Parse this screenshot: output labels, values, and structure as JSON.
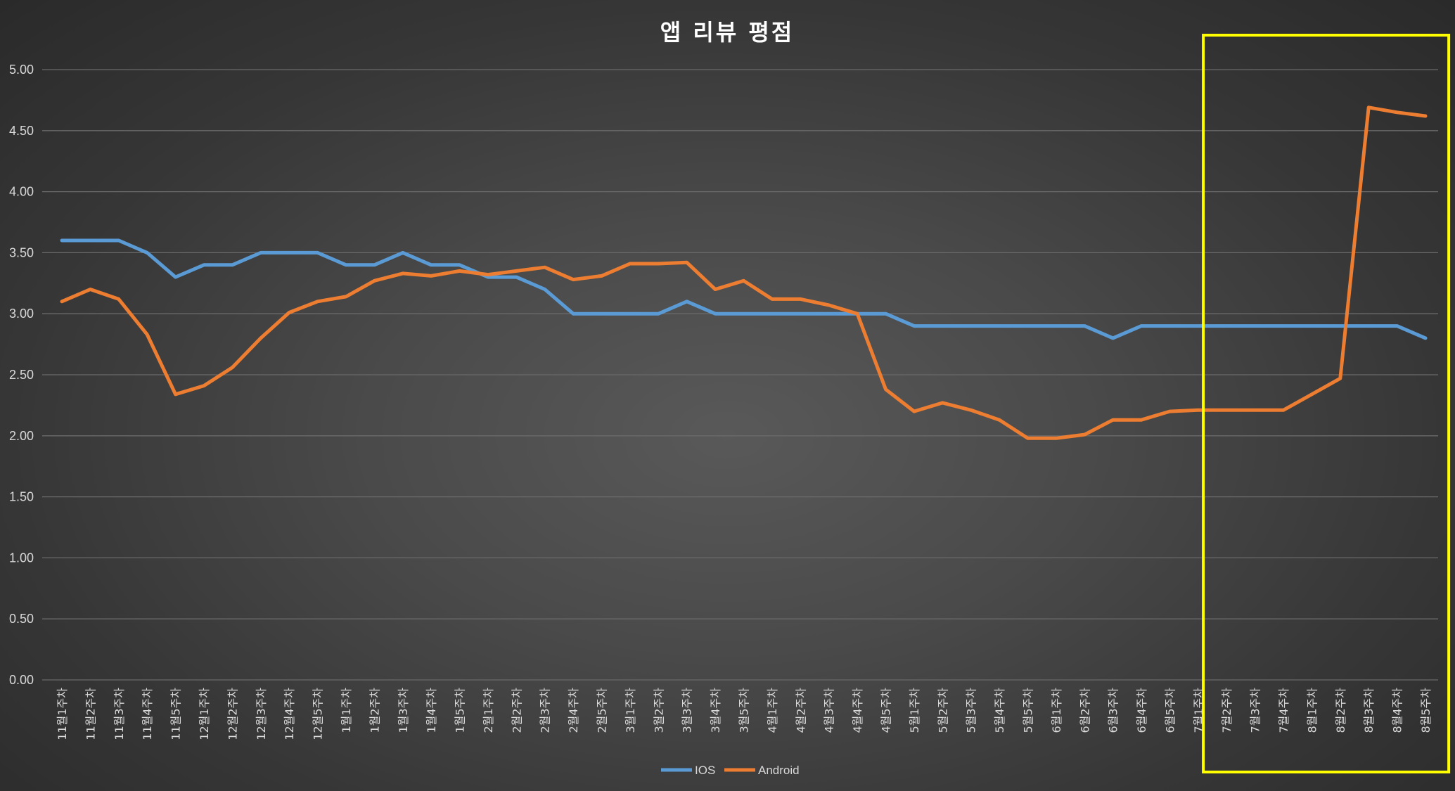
{
  "chart_data": {
    "type": "line",
    "title": "앱 리뷰 평점",
    "xlabel": "",
    "ylabel": "",
    "ylim": [
      0,
      5
    ],
    "y_ticks": [
      "0.00",
      "0.50",
      "1.00",
      "1.50",
      "2.00",
      "2.50",
      "3.00",
      "3.50",
      "4.00",
      "4.50",
      "5.00"
    ],
    "y_tick_values": [
      0,
      0.5,
      1,
      1.5,
      2,
      2.5,
      3,
      3.5,
      4,
      4.5,
      5
    ],
    "grid": true,
    "legend_position": "bottom",
    "categories": [
      "11월1주차",
      "11월2주차",
      "11월3주차",
      "11월4주차",
      "11월5주차",
      "12월1주차",
      "12월2주차",
      "12월3주차",
      "12월4주차",
      "12월5주차",
      "1월1주차",
      "1월2주차",
      "1월3주차",
      "1월4주차",
      "1월5주차",
      "2월1주차",
      "2월2주차",
      "2월3주차",
      "2월4주차",
      "2월5주차",
      "3월1주차",
      "3월2주차",
      "3월3주차",
      "3월4주차",
      "3월5주차",
      "4월1주차",
      "4월2주차",
      "4월3주차",
      "4월4주차",
      "4월5주차",
      "5월1주차",
      "5월2주차",
      "5월3주차",
      "5월4주차",
      "5월5주차",
      "6월1주차",
      "6월2주차",
      "6월3주차",
      "6월4주차",
      "6월5주차",
      "7월1주차",
      "7월2주차",
      "7월3주차",
      "7월4주차",
      "8월1주차",
      "8월2주차",
      "8월3주차",
      "8월4주차",
      "8월5주차"
    ],
    "series": [
      {
        "name": "IOS",
        "color": "#5b9bd5",
        "values": [
          3.6,
          3.6,
          3.6,
          3.5,
          3.3,
          3.4,
          3.4,
          3.5,
          3.5,
          3.5,
          3.4,
          3.4,
          3.5,
          3.4,
          3.4,
          3.3,
          3.3,
          3.2,
          3.0,
          3.0,
          3.0,
          3.0,
          3.1,
          3.0,
          3.0,
          3.0,
          3.0,
          3.0,
          3.0,
          3.0,
          2.9,
          2.9,
          2.9,
          2.9,
          2.9,
          2.9,
          2.9,
          2.8,
          2.9,
          2.9,
          2.9,
          2.9,
          2.9,
          2.9,
          2.9,
          2.9,
          2.9,
          2.9,
          2.8
        ]
      },
      {
        "name": "Android",
        "color": "#ed7d31",
        "values": [
          3.1,
          3.2,
          3.12,
          2.83,
          2.34,
          2.41,
          2.56,
          2.8,
          3.01,
          3.1,
          3.14,
          3.27,
          3.33,
          3.31,
          3.35,
          3.32,
          3.35,
          3.38,
          3.28,
          3.31,
          3.41,
          3.41,
          3.42,
          3.2,
          3.27,
          3.12,
          3.12,
          3.07,
          3.0,
          2.38,
          2.2,
          2.27,
          2.21,
          2.13,
          1.98,
          1.98,
          2.01,
          2.13,
          2.13,
          2.2,
          2.21,
          2.21,
          2.21,
          2.21,
          2.34,
          2.47,
          4.69,
          4.65,
          4.62
        ]
      }
    ],
    "annotations": [
      {
        "type": "highlight-box",
        "color": "#ffff00",
        "from_category": "7월2주차",
        "to_category": "8월5주차"
      }
    ]
  }
}
